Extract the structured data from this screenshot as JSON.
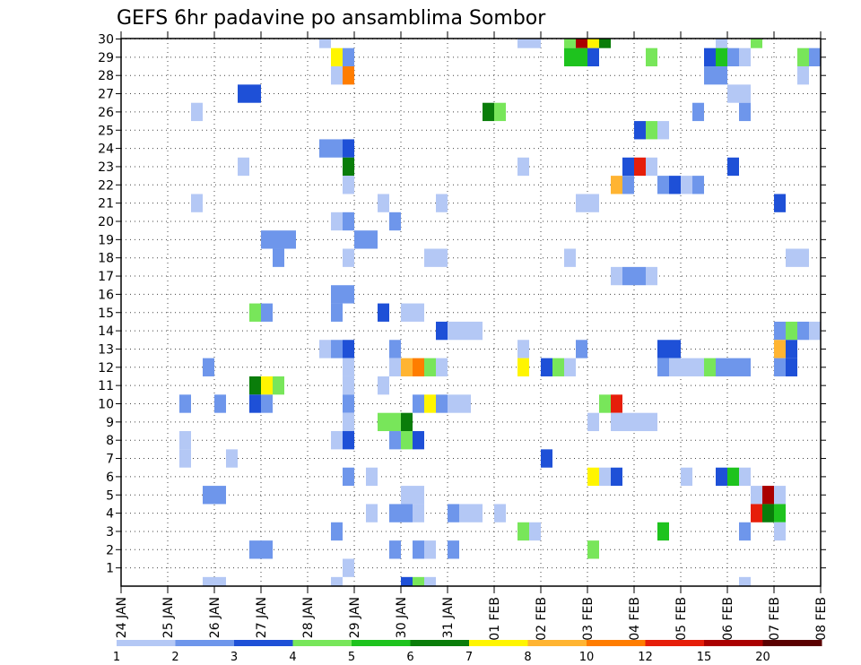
{
  "chart_data": {
    "type": "heatmap",
    "title": "GEFS 6hr padavine po ansamblima Sombor",
    "xlabel": "",
    "ylabel": "",
    "x_ticks": [
      "24 JAN",
      "25 JAN",
      "26 JAN",
      "27 JAN",
      "28 JAN",
      "29 JAN",
      "30 JAN",
      "31 JAN",
      "01 FEB",
      "02 FEB",
      "03 FEB",
      "04 FEB",
      "05 FEB",
      "06 FEB",
      "07 FEB",
      "08 FEB"
    ],
    "y_ticks": [
      "1",
      "2",
      "3",
      "4",
      "5",
      "6",
      "7",
      "8",
      "9",
      "10",
      "11",
      "12",
      "13",
      "14",
      "15",
      "16",
      "17",
      "18",
      "19",
      "20",
      "21",
      "22",
      "23",
      "24",
      "25",
      "26",
      "27",
      "28",
      "29",
      "30"
    ],
    "xlim": [
      0,
      60
    ],
    "ylim": [
      0,
      30
    ],
    "grid": true,
    "colorbar": {
      "position": "bottom",
      "colors": [
        "#b4c8f5",
        "#6e96eb",
        "#1e50d7",
        "#78e65a",
        "#1ec31e",
        "#0a7d0a",
        "#fff500",
        "#ffb432",
        "#ff7d00",
        "#e61e0a",
        "#aa0000",
        "#5a0000"
      ],
      "labels": [
        "1",
        "2",
        "3",
        "4",
        "5",
        "6",
        "7",
        "8",
        "10",
        "12",
        "15",
        "20"
      ]
    },
    "cells": [
      [
        17.5,
        30,
        1
      ],
      [
        34.5,
        30,
        1
      ],
      [
        35.5,
        30,
        1
      ],
      [
        38.5,
        30,
        4
      ],
      [
        39.5,
        30,
        11
      ],
      [
        40.5,
        30,
        7
      ],
      [
        41.5,
        30,
        6
      ],
      [
        51.5,
        30,
        1
      ],
      [
        54.5,
        30,
        4
      ],
      [
        18.5,
        29,
        7
      ],
      [
        19.5,
        29,
        2
      ],
      [
        38.5,
        29,
        5
      ],
      [
        39.5,
        29,
        5
      ],
      [
        40.5,
        29,
        3
      ],
      [
        45.5,
        29,
        4
      ],
      [
        50.5,
        29,
        3
      ],
      [
        51.5,
        29,
        5
      ],
      [
        52.5,
        29,
        2
      ],
      [
        53.5,
        29,
        1
      ],
      [
        58.5,
        29,
        4
      ],
      [
        59.5,
        29,
        2
      ],
      [
        18.5,
        28,
        1
      ],
      [
        19.5,
        28,
        9
      ],
      [
        50.5,
        28,
        2
      ],
      [
        51.5,
        28,
        2
      ],
      [
        58.5,
        28,
        1
      ],
      [
        10.5,
        27,
        3
      ],
      [
        11.5,
        27,
        3
      ],
      [
        52.5,
        27,
        1
      ],
      [
        53.5,
        27,
        1
      ],
      [
        6.5,
        26,
        1
      ],
      [
        31.5,
        26,
        6
      ],
      [
        32.5,
        26,
        4
      ],
      [
        49.5,
        26,
        2
      ],
      [
        53.5,
        26,
        2
      ],
      [
        44.5,
        25,
        3
      ],
      [
        45.5,
        25,
        4
      ],
      [
        46.5,
        25,
        1
      ],
      [
        17.5,
        24,
        2
      ],
      [
        18.5,
        24,
        2
      ],
      [
        19.5,
        24,
        3
      ],
      [
        10.5,
        23,
        1
      ],
      [
        19.5,
        23,
        6
      ],
      [
        34.5,
        23,
        1
      ],
      [
        43.5,
        23,
        3
      ],
      [
        44.5,
        23,
        10
      ],
      [
        45.5,
        23,
        1
      ],
      [
        52.5,
        23,
        3
      ],
      [
        19.5,
        22,
        1
      ],
      [
        42.5,
        22,
        8
      ],
      [
        43.5,
        22,
        2
      ],
      [
        46.5,
        22,
        2
      ],
      [
        47.5,
        22,
        3
      ],
      [
        48.5,
        22,
        1
      ],
      [
        49.5,
        22,
        2
      ],
      [
        6.5,
        21,
        1
      ],
      [
        22.5,
        21,
        1
      ],
      [
        27.5,
        21,
        1
      ],
      [
        39.5,
        21,
        1
      ],
      [
        40.5,
        21,
        1
      ],
      [
        56.5,
        21,
        3
      ],
      [
        18.5,
        20,
        1
      ],
      [
        19.5,
        20,
        2
      ],
      [
        23.5,
        20,
        2
      ],
      [
        12.5,
        19,
        2
      ],
      [
        13.5,
        19,
        2
      ],
      [
        14.5,
        19,
        2
      ],
      [
        20.5,
        19,
        2
      ],
      [
        21.5,
        19,
        2
      ],
      [
        13.5,
        18,
        2
      ],
      [
        19.5,
        18,
        1
      ],
      [
        26.5,
        18,
        1
      ],
      [
        27.5,
        18,
        1
      ],
      [
        38.5,
        18,
        1
      ],
      [
        57.5,
        18,
        1
      ],
      [
        58.5,
        18,
        1
      ],
      [
        42.5,
        17,
        1
      ],
      [
        43.5,
        17,
        2
      ],
      [
        44.5,
        17,
        2
      ],
      [
        45.5,
        17,
        1
      ],
      [
        18.5,
        16,
        2
      ],
      [
        19.5,
        16,
        2
      ],
      [
        11.5,
        15,
        4
      ],
      [
        12.5,
        15,
        2
      ],
      [
        18.5,
        15,
        2
      ],
      [
        22.5,
        15,
        3
      ],
      [
        24.5,
        15,
        1
      ],
      [
        25.5,
        15,
        1
      ],
      [
        27.5,
        14,
        3
      ],
      [
        28.5,
        14,
        1
      ],
      [
        29.5,
        14,
        1
      ],
      [
        30.5,
        14,
        1
      ],
      [
        56.5,
        14,
        2
      ],
      [
        57.5,
        14,
        4
      ],
      [
        58.5,
        14,
        2
      ],
      [
        59.5,
        14,
        1
      ],
      [
        17.5,
        13,
        1
      ],
      [
        18.5,
        13,
        2
      ],
      [
        19.5,
        13,
        3
      ],
      [
        23.5,
        13,
        2
      ],
      [
        34.5,
        13,
        1
      ],
      [
        39.5,
        13,
        2
      ],
      [
        46.5,
        13,
        3
      ],
      [
        47.5,
        13,
        3
      ],
      [
        56.5,
        13,
        8
      ],
      [
        57.5,
        13,
        3
      ],
      [
        7.5,
        12,
        2
      ],
      [
        19.5,
        12,
        1
      ],
      [
        23.5,
        12,
        1
      ],
      [
        24.5,
        12,
        8
      ],
      [
        25.5,
        12,
        9
      ],
      [
        26.5,
        12,
        4
      ],
      [
        27.5,
        12,
        1
      ],
      [
        34.5,
        12,
        7
      ],
      [
        36.5,
        12,
        3
      ],
      [
        37.5,
        12,
        4
      ],
      [
        38.5,
        12,
        1
      ],
      [
        46.5,
        12,
        2
      ],
      [
        47.5,
        12,
        1
      ],
      [
        48.5,
        12,
        1
      ],
      [
        49.5,
        12,
        1
      ],
      [
        50.5,
        12,
        4
      ],
      [
        51.5,
        12,
        2
      ],
      [
        52.5,
        12,
        2
      ],
      [
        53.5,
        12,
        2
      ],
      [
        56.5,
        12,
        2
      ],
      [
        57.5,
        12,
        3
      ],
      [
        11.5,
        11,
        6
      ],
      [
        12.5,
        11,
        7
      ],
      [
        13.5,
        11,
        4
      ],
      [
        19.5,
        11,
        1
      ],
      [
        22.5,
        11,
        1
      ],
      [
        5.5,
        10,
        2
      ],
      [
        8.5,
        10,
        2
      ],
      [
        11.5,
        10,
        3
      ],
      [
        12.5,
        10,
        2
      ],
      [
        19.5,
        10,
        2
      ],
      [
        25.5,
        10,
        2
      ],
      [
        26.5,
        10,
        7
      ],
      [
        27.5,
        10,
        2
      ],
      [
        28.5,
        10,
        1
      ],
      [
        29.5,
        10,
        1
      ],
      [
        41.5,
        10,
        4
      ],
      [
        42.5,
        10,
        10
      ],
      [
        19.5,
        9,
        1
      ],
      [
        22.5,
        9,
        4
      ],
      [
        23.5,
        9,
        4
      ],
      [
        24.5,
        9,
        6
      ],
      [
        40.5,
        9,
        1
      ],
      [
        42.5,
        9,
        1
      ],
      [
        43.5,
        9,
        1
      ],
      [
        44.5,
        9,
        1
      ],
      [
        45.5,
        9,
        1
      ],
      [
        5.5,
        8,
        1
      ],
      [
        18.5,
        8,
        1
      ],
      [
        19.5,
        8,
        3
      ],
      [
        23.5,
        8,
        2
      ],
      [
        24.5,
        8,
        4
      ],
      [
        25.5,
        8,
        3
      ],
      [
        5.5,
        7,
        1
      ],
      [
        9.5,
        7,
        1
      ],
      [
        36.5,
        7,
        3
      ],
      [
        19.5,
        6,
        2
      ],
      [
        21.5,
        6,
        1
      ],
      [
        40.5,
        6,
        7
      ],
      [
        41.5,
        6,
        1
      ],
      [
        42.5,
        6,
        3
      ],
      [
        48.5,
        6,
        1
      ],
      [
        51.5,
        6,
        3
      ],
      [
        52.5,
        6,
        5
      ],
      [
        53.5,
        6,
        1
      ],
      [
        7.5,
        5,
        2
      ],
      [
        8.5,
        5,
        2
      ],
      [
        24.5,
        5,
        1
      ],
      [
        25.5,
        5,
        1
      ],
      [
        54.5,
        5,
        1
      ],
      [
        55.5,
        5,
        11
      ],
      [
        56.5,
        5,
        1
      ],
      [
        21.5,
        4,
        1
      ],
      [
        23.5,
        4,
        2
      ],
      [
        24.5,
        4,
        2
      ],
      [
        25.5,
        4,
        1
      ],
      [
        28.5,
        4,
        2
      ],
      [
        29.5,
        4,
        1
      ],
      [
        30.5,
        4,
        1
      ],
      [
        32.5,
        4,
        1
      ],
      [
        54.5,
        4,
        10
      ],
      [
        55.5,
        4,
        6
      ],
      [
        56.5,
        4,
        5
      ],
      [
        18.5,
        3,
        2
      ],
      [
        34.5,
        3,
        4
      ],
      [
        35.5,
        3,
        1
      ],
      [
        46.5,
        3,
        5
      ],
      [
        53.5,
        3,
        2
      ],
      [
        56.5,
        3,
        1
      ],
      [
        11.5,
        2,
        2
      ],
      [
        12.5,
        2,
        2
      ],
      [
        23.5,
        2,
        2
      ],
      [
        25.5,
        2,
        2
      ],
      [
        26.5,
        2,
        1
      ],
      [
        28.5,
        2,
        2
      ],
      [
        40.5,
        2,
        4
      ],
      [
        19.5,
        1,
        1
      ],
      [
        7.5,
        0,
        1
      ],
      [
        8.5,
        0,
        1
      ],
      [
        18.5,
        0,
        1
      ],
      [
        24.5,
        0,
        3
      ],
      [
        25.5,
        0,
        4
      ],
      [
        26.5,
        0,
        1
      ],
      [
        53.5,
        0,
        1
      ]
    ]
  }
}
